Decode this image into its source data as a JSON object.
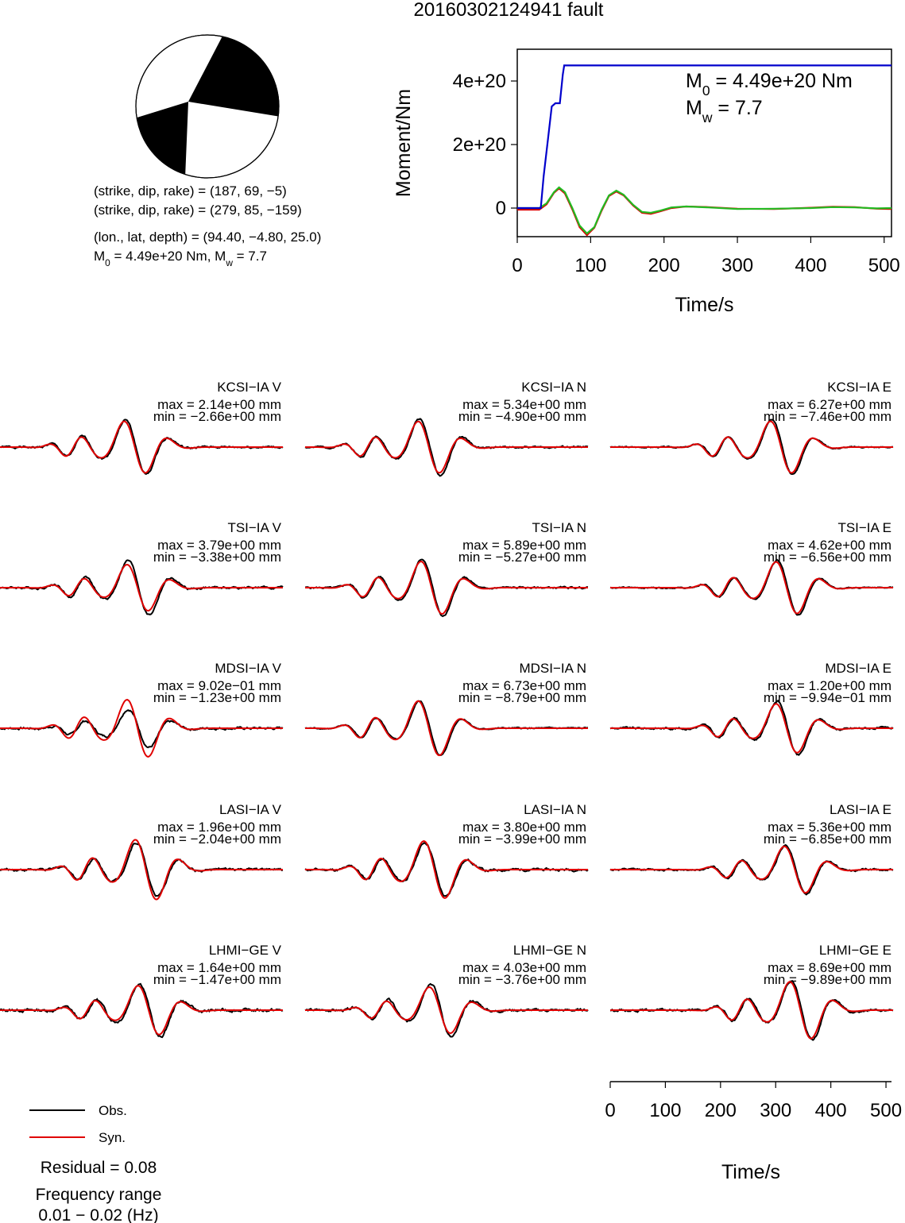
{
  "title": "20160302124941 fault",
  "mechanism": {
    "plane1": "(strike, dip, rake) = (187, 69, −5)",
    "plane2": "(strike, dip, rake) = (279, 85, −159)",
    "location": "(lon., lat, depth) = (94.40, −4.80, 25.0)",
    "moment_line": "M0 = 4.49e+20 Nm, Mw = 7.7",
    "moment_parts": [
      "M",
      "0",
      " = 4.49e+20 Nm, M",
      "w",
      " = 7.7"
    ]
  },
  "colors": {
    "observed": "#000000",
    "synthetic": "#e00000",
    "moment": "#0000cc",
    "rate_green": "#22bb22",
    "rate_red": "#dd0000"
  },
  "chart_data": [
    {
      "type": "line",
      "ylabel": "Moment/Nm",
      "xlabel": "Time/s",
      "xlim": [
        0,
        510
      ],
      "ylim": [
        -9e+19,
        5e+20
      ],
      "xticks": [
        0,
        100,
        200,
        300,
        400,
        500
      ],
      "xtick_labels": [
        "0",
        "100",
        "200",
        "300",
        "400",
        "500"
      ],
      "yticks": [
        0,
        2e+20,
        4e+20
      ],
      "ytick_labels": [
        "0",
        "2e+20",
        "4e+20"
      ],
      "annotation": {
        "line1_parts": [
          "M",
          "0",
          " = 4.49e+20 Nm"
        ],
        "line2_parts": [
          "M",
          "w",
          " = 7.7"
        ]
      },
      "series": [
        {
          "color": "#0000cc",
          "x": [
            0,
            32,
            36,
            42,
            47,
            52,
            58,
            62,
            64,
            66,
            510
          ],
          "y": [
            0,
            0,
            1e+20,
            2.2e+20,
            3.2e+20,
            3.3e+20,
            3.3e+20,
            4.2e+20,
            4.49e+20,
            4.49e+20,
            4.49e+20
          ]
        },
        {
          "color": "#22bb22",
          "x": [
            0,
            30,
            40,
            50,
            57,
            65,
            75,
            85,
            95,
            105,
            115,
            125,
            135,
            145,
            158,
            170,
            182,
            195,
            210,
            230,
            260,
            300,
            350,
            400,
            430,
            460,
            490,
            510
          ],
          "y": [
            0,
            0,
            1.5e+19,
            5e+19,
            6.5e+19,
            5e+19,
            0.0,
            -5.5e+19,
            -8e+19,
            -6e+19,
            -5e+18,
            4e+19,
            5.5e+19,
            4.2e+19,
            1e+19,
            -1.2e+19,
            -1.5e+19,
            -8e+18,
            2e+18,
            5e+18,
            2e+18,
            -3e+18,
            -2e+18,
            0.0,
            3e+18,
            2e+18,
            -1e+18,
            0
          ]
        },
        {
          "color": "#dd0000",
          "x": [
            0,
            30,
            40,
            50,
            57,
            65,
            75,
            85,
            95,
            105,
            115,
            125,
            135,
            145,
            158,
            170,
            182,
            195,
            210,
            230,
            260,
            300,
            350,
            400,
            430,
            460,
            490,
            510
          ],
          "y": [
            -5e+18,
            -5e+18,
            1.2e+19,
            4.8e+19,
            6.2e+19,
            4.6e+19,
            -4e+18,
            -6e+19,
            -8.5e+19,
            -6.2e+19,
            -8e+18,
            3.8e+19,
            5.2e+19,
            4e+19,
            8e+18,
            -1.5e+19,
            -1.8e+19,
            -1e+19,
            0.0,
            5e+18,
            3e+18,
            -2e+18,
            -3e+18,
            1e+18,
            4e+18,
            3e+18,
            -2e+18,
            -3e+18
          ]
        }
      ]
    },
    {
      "type": "line",
      "name": "waveforms",
      "time_axis": {
        "label": "Time/s",
        "xlim": [
          0,
          510
        ],
        "ticks": [
          0,
          100,
          200,
          300,
          400,
          500
        ],
        "tick_labels": [
          "0",
          "100",
          "200",
          "300",
          "400",
          "500"
        ]
      },
      "traces": [
        {
          "label": "KCSI−IA V",
          "max": "max = 2.14e+00 mm",
          "min": "min = −2.66e+00 mm",
          "amp": 1.0,
          "center": 245,
          "noise": 0.05,
          "syn_scale": 0.95,
          "seed": 1
        },
        {
          "label": "KCSI−IA N",
          "max": "max = 5.34e+00 mm",
          "min": "min = −4.90e+00 mm",
          "amp": 1.05,
          "center": 225,
          "noise": 0.04,
          "syn_scale": 0.9,
          "seed": 2
        },
        {
          "label": "KCSI−IA E",
          "max": "max = 6.27e+00 mm",
          "min": "min = −7.46e+00 mm",
          "amp": 1.0,
          "center": 310,
          "noise": 0.03,
          "syn_scale": 0.95,
          "seed": 3
        },
        {
          "label": "TSI−IA V",
          "max": "max = 3.79e+00 mm",
          "min": "min = −3.38e+00 mm",
          "amp": 1.0,
          "center": 250,
          "noise": 0.05,
          "syn_scale": 0.85,
          "seed": 4
        },
        {
          "label": "TSI−IA N",
          "max": "max = 5.89e+00 mm",
          "min": "min = −5.27e+00 mm",
          "amp": 1.05,
          "center": 230,
          "noise": 0.04,
          "syn_scale": 0.92,
          "seed": 5
        },
        {
          "label": "TSI−IA E",
          "max": "max = 4.62e+00 mm",
          "min": "min = −6.56e+00 mm",
          "amp": 1.0,
          "center": 320,
          "noise": 0.03,
          "syn_scale": 0.95,
          "seed": 6
        },
        {
          "label": "MDSI−IA V",
          "max": "max = 9.02e−01 mm",
          "min": "min = −1.23e+00 mm",
          "amp": 0.7,
          "center": 250,
          "noise": 0.08,
          "syn_scale": 1.5,
          "seed": 7
        },
        {
          "label": "MDSI−IA N",
          "max": "max = 6.73e+00 mm",
          "min": "min = −8.79e+00 mm",
          "amp": 1.0,
          "center": 225,
          "noise": 0.03,
          "syn_scale": 1.0,
          "seed": 8
        },
        {
          "label": "MDSI−IA E",
          "max": "max = 1.20e+00 mm",
          "min": "min = −9.94e−01 mm",
          "amp": 1.0,
          "center": 320,
          "noise": 0.05,
          "syn_scale": 0.9,
          "seed": 9
        },
        {
          "label": "LASI−IA V",
          "max": "max = 1.96e+00 mm",
          "min": "min = −2.04e+00 mm",
          "amp": 1.0,
          "center": 265,
          "noise": 0.06,
          "syn_scale": 1.1,
          "seed": 10
        },
        {
          "label": "LASI−IA N",
          "max": "max = 3.80e+00 mm",
          "min": "min = −3.99e+00 mm",
          "amp": 1.0,
          "center": 235,
          "noise": 0.06,
          "syn_scale": 1.05,
          "seed": 11
        },
        {
          "label": "LASI−IA E",
          "max": "max = 5.36e+00 mm",
          "min": "min = −6.85e+00 mm",
          "amp": 0.9,
          "center": 335,
          "noise": 0.05,
          "syn_scale": 0.95,
          "seed": 12
        },
        {
          "label": "LHMI−GE V",
          "max": "max = 1.64e+00 mm",
          "min": "min = −1.47e+00 mm",
          "amp": 1.0,
          "center": 270,
          "noise": 0.07,
          "syn_scale": 0.9,
          "seed": 13
        },
        {
          "label": "LHMI−GE N",
          "max": "max = 4.03e+00 mm",
          "min": "min = −3.76e+00 mm",
          "amp": 1.0,
          "center": 245,
          "noise": 0.06,
          "syn_scale": 0.85,
          "seed": 14
        },
        {
          "label": "LHMI−GE E",
          "max": "max = 8.69e+00 mm",
          "min": "min = −9.89e+00 mm",
          "amp": 1.1,
          "center": 345,
          "noise": 0.05,
          "syn_scale": 0.95,
          "seed": 15
        }
      ]
    }
  ],
  "legend": {
    "obs": "Obs.",
    "syn": "Syn."
  },
  "footer": {
    "residual": "Residual = 0.08",
    "freq_label": "Frequency range",
    "freq_value": "0.01 − 0.02 (Hz)"
  }
}
